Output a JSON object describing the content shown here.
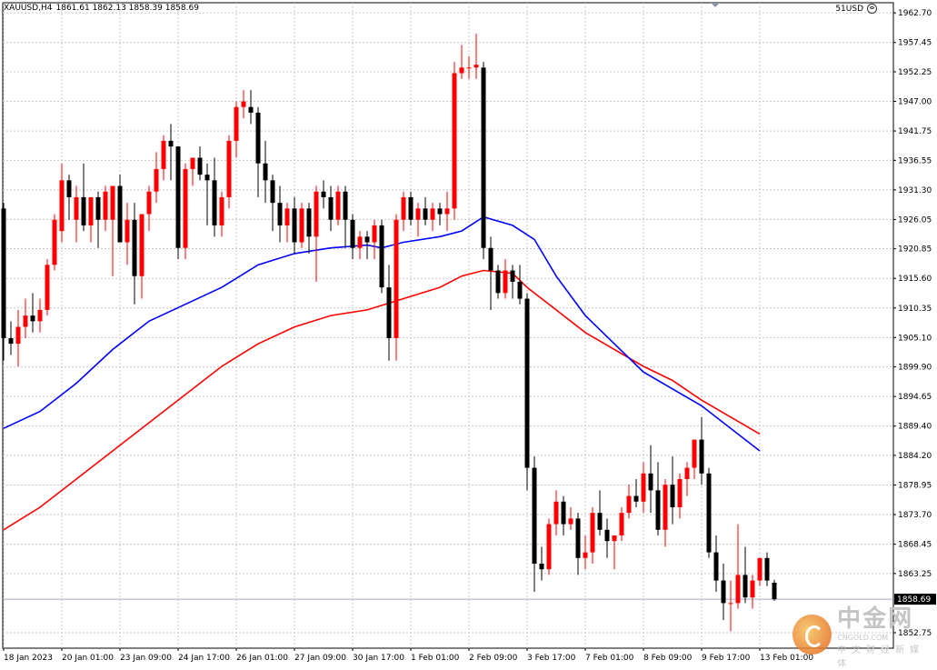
{
  "header": {
    "symbol": "XAUUSD,H4",
    "ohlc": "1861.61 1862.13 1858.39 1858.69"
  },
  "account_label": "51USD",
  "current_price_label": "1858.69",
  "watermark": {
    "main": "中金网",
    "sub": "CNGOLD.COM",
    "tagline": "中文财经新媒体"
  },
  "colors": {
    "bull": "#ff0000",
    "bear": "#000000",
    "ma_fast": "#0000ff",
    "ma_slow": "#ff0000",
    "grid": "#c8c8c8",
    "bid_line": "#a9a9c6"
  },
  "chart_data": {
    "type": "candlestick",
    "symbol": "XAUUSD",
    "timeframe": "H4",
    "ylim": [
      1850.0,
      1964.5
    ],
    "y_ticks": [
      1962.7,
      1957.45,
      1952.25,
      1947.0,
      1941.75,
      1936.55,
      1931.3,
      1926.05,
      1920.85,
      1915.6,
      1910.35,
      1905.1,
      1899.9,
      1894.65,
      1889.4,
      1884.2,
      1878.95,
      1873.7,
      1868.45,
      1863.25,
      1852.75
    ],
    "x_tick_labels": [
      "18 Jan 2023",
      "20 Jan 01:00",
      "23 Jan 09:00",
      "24 Jan 17:00",
      "26 Jan 01:00",
      "27 Jan 09:00",
      "30 Jan 17:00",
      "1 Feb 01:00",
      "2 Feb 09:00",
      "3 Feb 17:00",
      "7 Feb 01:00",
      "8 Feb 09:00",
      "9 Feb 17:00",
      "13 Feb 01:00"
    ],
    "x_tick_bar_index": [
      0,
      8,
      16,
      24,
      32,
      40,
      48,
      56,
      64,
      72,
      80,
      88,
      96,
      104
    ],
    "grid": true,
    "candles": [
      {
        "o": 1928.0,
        "h": 1929.0,
        "l": 1901.0,
        "c": 1905.0
      },
      {
        "o": 1905.0,
        "h": 1908.0,
        "l": 1902.0,
        "c": 1904.0
      },
      {
        "o": 1904.0,
        "h": 1910.0,
        "l": 1900.0,
        "c": 1907.0
      },
      {
        "o": 1907.0,
        "h": 1912.0,
        "l": 1905.0,
        "c": 1909.0
      },
      {
        "o": 1909.0,
        "h": 1913.0,
        "l": 1906.0,
        "c": 1908.0
      },
      {
        "o": 1908.0,
        "h": 1912.0,
        "l": 1906.0,
        "c": 1910.0
      },
      {
        "o": 1910.0,
        "h": 1919.0,
        "l": 1909.0,
        "c": 1918.0
      },
      {
        "o": 1918.0,
        "h": 1927.0,
        "l": 1917.0,
        "c": 1926.0
      },
      {
        "o": 1924.0,
        "h": 1936.0,
        "l": 1922.0,
        "c": 1933.0
      },
      {
        "o": 1933.0,
        "h": 1934.0,
        "l": 1926.0,
        "c": 1930.0
      },
      {
        "o": 1926.0,
        "h": 1932.0,
        "l": 1922.0,
        "c": 1930.0
      },
      {
        "o": 1930.0,
        "h": 1936.0,
        "l": 1924.0,
        "c": 1925.0
      },
      {
        "o": 1925.0,
        "h": 1930.0,
        "l": 1922.0,
        "c": 1930.0
      },
      {
        "o": 1930.0,
        "h": 1931.0,
        "l": 1921.0,
        "c": 1926.0
      },
      {
        "o": 1926.0,
        "h": 1932.0,
        "l": 1924.0,
        "c": 1931.0
      },
      {
        "o": 1926.0,
        "h": 1931.0,
        "l": 1916.0,
        "c": 1932.0
      },
      {
        "o": 1932.0,
        "h": 1934.0,
        "l": 1922.0,
        "c": 1922.0
      },
      {
        "o": 1922.0,
        "h": 1929.0,
        "l": 1918.0,
        "c": 1926.0
      },
      {
        "o": 1926.0,
        "h": 1929.0,
        "l": 1911.0,
        "c": 1916.0
      },
      {
        "o": 1916.0,
        "h": 1927.0,
        "l": 1912.0,
        "c": 1927.0
      },
      {
        "o": 1927.0,
        "h": 1932.0,
        "l": 1924.0,
        "c": 1931.0
      },
      {
        "o": 1931.0,
        "h": 1938.0,
        "l": 1929.0,
        "c": 1935.0
      },
      {
        "o": 1935.0,
        "h": 1941.0,
        "l": 1933.0,
        "c": 1940.0
      },
      {
        "o": 1940.0,
        "h": 1943.0,
        "l": 1933.0,
        "c": 1939.0
      },
      {
        "o": 1939.0,
        "h": 1939.0,
        "l": 1919.0,
        "c": 1921.0
      },
      {
        "o": 1921.0,
        "h": 1936.0,
        "l": 1919.0,
        "c": 1935.0
      },
      {
        "o": 1935.0,
        "h": 1937.0,
        "l": 1932.0,
        "c": 1937.0
      },
      {
        "o": 1937.0,
        "h": 1939.0,
        "l": 1933.0,
        "c": 1934.0
      },
      {
        "o": 1934.0,
        "h": 1936.0,
        "l": 1925.0,
        "c": 1933.0
      },
      {
        "o": 1933.0,
        "h": 1937.0,
        "l": 1923.0,
        "c": 1925.0
      },
      {
        "o": 1925.0,
        "h": 1931.0,
        "l": 1923.0,
        "c": 1930.0
      },
      {
        "o": 1930.0,
        "h": 1941.0,
        "l": 1928.0,
        "c": 1940.0
      },
      {
        "o": 1940.0,
        "h": 1947.0,
        "l": 1937.0,
        "c": 1946.0
      },
      {
        "o": 1946.0,
        "h": 1949.0,
        "l": 1944.0,
        "c": 1947.0
      },
      {
        "o": 1946.0,
        "h": 1949.0,
        "l": 1943.0,
        "c": 1945.0
      },
      {
        "o": 1945.0,
        "h": 1946.0,
        "l": 1930.0,
        "c": 1936.0
      },
      {
        "o": 1936.0,
        "h": 1940.0,
        "l": 1929.0,
        "c": 1933.0
      },
      {
        "o": 1933.0,
        "h": 1934.0,
        "l": 1924.0,
        "c": 1929.0
      },
      {
        "o": 1929.0,
        "h": 1932.0,
        "l": 1922.0,
        "c": 1925.0
      },
      {
        "o": 1925.0,
        "h": 1929.0,
        "l": 1922.0,
        "c": 1928.0
      },
      {
        "o": 1928.0,
        "h": 1930.0,
        "l": 1920.0,
        "c": 1922.0
      },
      {
        "o": 1922.0,
        "h": 1929.0,
        "l": 1921.0,
        "c": 1928.0
      },
      {
        "o": 1928.0,
        "h": 1929.0,
        "l": 1920.0,
        "c": 1923.0
      },
      {
        "o": 1923.0,
        "h": 1932.0,
        "l": 1915.0,
        "c": 1931.0
      },
      {
        "o": 1931.0,
        "h": 1933.0,
        "l": 1928.0,
        "c": 1930.0
      },
      {
        "o": 1930.0,
        "h": 1932.0,
        "l": 1924.0,
        "c": 1926.0
      },
      {
        "o": 1926.0,
        "h": 1932.0,
        "l": 1925.0,
        "c": 1931.0
      },
      {
        "o": 1931.0,
        "h": 1932.0,
        "l": 1921.0,
        "c": 1926.0
      },
      {
        "o": 1926.0,
        "h": 1927.0,
        "l": 1919.0,
        "c": 1921.0
      },
      {
        "o": 1921.0,
        "h": 1924.0,
        "l": 1919.0,
        "c": 1923.0
      },
      {
        "o": 1923.0,
        "h": 1924.0,
        "l": 1919.0,
        "c": 1922.0
      },
      {
        "o": 1922.0,
        "h": 1926.0,
        "l": 1919.0,
        "c": 1925.0
      },
      {
        "o": 1925.0,
        "h": 1926.0,
        "l": 1913.0,
        "c": 1914.0
      },
      {
        "o": 1914.0,
        "h": 1918.0,
        "l": 1901.0,
        "c": 1905.0
      },
      {
        "o": 1905.0,
        "h": 1927.0,
        "l": 1901.0,
        "c": 1926.0
      },
      {
        "o": 1926.0,
        "h": 1931.0,
        "l": 1924.0,
        "c": 1930.0
      },
      {
        "o": 1930.0,
        "h": 1931.0,
        "l": 1925.0,
        "c": 1926.0
      },
      {
        "o": 1926.0,
        "h": 1929.0,
        "l": 1923.0,
        "c": 1928.0
      },
      {
        "o": 1928.0,
        "h": 1930.0,
        "l": 1925.0,
        "c": 1926.0
      },
      {
        "o": 1926.0,
        "h": 1929.0,
        "l": 1924.0,
        "c": 1928.0
      },
      {
        "o": 1928.0,
        "h": 1929.0,
        "l": 1925.0,
        "c": 1927.0
      },
      {
        "o": 1927.0,
        "h": 1931.0,
        "l": 1924.0,
        "c": 1928.0
      },
      {
        "o": 1928.0,
        "h": 1954.0,
        "l": 1926.0,
        "c": 1952.0
      },
      {
        "o": 1952.0,
        "h": 1957.0,
        "l": 1951.0,
        "c": 1953.0
      },
      {
        "o": 1953.0,
        "h": 1955.0,
        "l": 1951.0,
        "c": 1953.0
      },
      {
        "o": 1953.0,
        "h": 1959.0,
        "l": 1951.0,
        "c": 1953.5
      },
      {
        "o": 1953.0,
        "h": 1954.0,
        "l": 1919.0,
        "c": 1921.0
      },
      {
        "o": 1921.0,
        "h": 1923.0,
        "l": 1910.0,
        "c": 1917.0
      },
      {
        "o": 1917.0,
        "h": 1918.0,
        "l": 1912.0,
        "c": 1913.0
      },
      {
        "o": 1913.0,
        "h": 1919.0,
        "l": 1912.0,
        "c": 1917.0
      },
      {
        "o": 1917.0,
        "h": 1918.0,
        "l": 1912.0,
        "c": 1915.0
      },
      {
        "o": 1915.0,
        "h": 1918.0,
        "l": 1911.0,
        "c": 1912.0
      },
      {
        "o": 1912.0,
        "h": 1913.0,
        "l": 1878.0,
        "c": 1882.0
      },
      {
        "o": 1882.0,
        "h": 1884.0,
        "l": 1860.0,
        "c": 1865.0
      },
      {
        "o": 1865.0,
        "h": 1868.0,
        "l": 1862.0,
        "c": 1864.0
      },
      {
        "o": 1864.0,
        "h": 1873.0,
        "l": 1863.0,
        "c": 1872.0
      },
      {
        "o": 1872.0,
        "h": 1878.0,
        "l": 1870.0,
        "c": 1876.0
      },
      {
        "o": 1876.0,
        "h": 1877.0,
        "l": 1870.0,
        "c": 1872.0
      },
      {
        "o": 1872.0,
        "h": 1875.0,
        "l": 1871.0,
        "c": 1873.0
      },
      {
        "o": 1873.0,
        "h": 1874.0,
        "l": 1863.0,
        "c": 1866.0
      },
      {
        "o": 1866.0,
        "h": 1870.0,
        "l": 1864.0,
        "c": 1867.0
      },
      {
        "o": 1867.0,
        "h": 1875.0,
        "l": 1865.0,
        "c": 1874.0
      },
      {
        "o": 1874.0,
        "h": 1878.0,
        "l": 1870.0,
        "c": 1871.0
      },
      {
        "o": 1871.0,
        "h": 1873.0,
        "l": 1866.0,
        "c": 1869.0
      },
      {
        "o": 1869.0,
        "h": 1870.0,
        "l": 1864.0,
        "c": 1870.0
      },
      {
        "o": 1870.0,
        "h": 1875.0,
        "l": 1869.0,
        "c": 1874.0
      },
      {
        "o": 1874.0,
        "h": 1879.0,
        "l": 1873.0,
        "c": 1877.0
      },
      {
        "o": 1877.0,
        "h": 1880.0,
        "l": 1875.0,
        "c": 1876.0
      },
      {
        "o": 1876.0,
        "h": 1883.0,
        "l": 1874.0,
        "c": 1881.0
      },
      {
        "o": 1881.0,
        "h": 1886.0,
        "l": 1874.0,
        "c": 1878.0
      },
      {
        "o": 1878.0,
        "h": 1883.0,
        "l": 1870.0,
        "c": 1871.0
      },
      {
        "o": 1871.0,
        "h": 1880.0,
        "l": 1868.0,
        "c": 1879.0
      },
      {
        "o": 1879.0,
        "h": 1884.0,
        "l": 1872.0,
        "c": 1875.0
      },
      {
        "o": 1875.0,
        "h": 1881.0,
        "l": 1873.0,
        "c": 1880.0
      },
      {
        "o": 1880.0,
        "h": 1883.0,
        "l": 1877.0,
        "c": 1882.0
      },
      {
        "o": 1882.0,
        "h": 1887.0,
        "l": 1880.0,
        "c": 1887.0
      },
      {
        "o": 1887.0,
        "h": 1891.0,
        "l": 1879.0,
        "c": 1881.0
      },
      {
        "o": 1881.0,
        "h": 1882.0,
        "l": 1866.0,
        "c": 1867.0
      },
      {
        "o": 1867.0,
        "h": 1870.0,
        "l": 1860.0,
        "c": 1862.0
      },
      {
        "o": 1862.0,
        "h": 1865.0,
        "l": 1855.0,
        "c": 1858.0
      },
      {
        "o": 1858.0,
        "h": 1862.0,
        "l": 1853.0,
        "c": 1858.0
      },
      {
        "o": 1858.0,
        "h": 1872.0,
        "l": 1857.0,
        "c": 1863.0
      },
      {
        "o": 1863.0,
        "h": 1868.0,
        "l": 1858.0,
        "c": 1859.0
      },
      {
        "o": 1859.0,
        "h": 1863.0,
        "l": 1857.0,
        "c": 1862.0
      },
      {
        "o": 1862.0,
        "h": 1866.0,
        "l": 1861.0,
        "c": 1866.0
      },
      {
        "o": 1866.0,
        "h": 1867.0,
        "l": 1861.0,
        "c": 1862.0
      },
      {
        "o": 1861.61,
        "h": 1862.13,
        "l": 1858.39,
        "c": 1858.69
      }
    ],
    "ma_fast": [
      [
        0,
        1889.0
      ],
      [
        5,
        1892.0
      ],
      [
        10,
        1897.0
      ],
      [
        15,
        1903.0
      ],
      [
        20,
        1908.0
      ],
      [
        25,
        1911.0
      ],
      [
        30,
        1914.0
      ],
      [
        35,
        1918.0
      ],
      [
        40,
        1920.0
      ],
      [
        45,
        1921.0
      ],
      [
        50,
        1921.5
      ],
      [
        52,
        1921.0
      ],
      [
        55,
        1922.0
      ],
      [
        60,
        1923.0
      ],
      [
        63,
        1924.0
      ],
      [
        66,
        1926.5
      ],
      [
        70,
        1925.0
      ],
      [
        73,
        1922.5
      ],
      [
        76,
        1916.0
      ],
      [
        80,
        1909.0
      ],
      [
        84,
        1904.0
      ],
      [
        88,
        1899.0
      ],
      [
        92,
        1896.0
      ],
      [
        96,
        1893.0
      ],
      [
        100,
        1889.0
      ],
      [
        104,
        1885.0
      ]
    ],
    "ma_slow": [
      [
        0,
        1871.0
      ],
      [
        5,
        1875.0
      ],
      [
        10,
        1880.0
      ],
      [
        15,
        1885.0
      ],
      [
        20,
        1890.0
      ],
      [
        25,
        1895.0
      ],
      [
        30,
        1900.0
      ],
      [
        35,
        1904.0
      ],
      [
        40,
        1907.0
      ],
      [
        45,
        1909.0
      ],
      [
        50,
        1910.0
      ],
      [
        55,
        1912.0
      ],
      [
        60,
        1914.0
      ],
      [
        63,
        1916.0
      ],
      [
        66,
        1917.0
      ],
      [
        70,
        1916.5
      ],
      [
        72,
        1914.0
      ],
      [
        76,
        1910.0
      ],
      [
        80,
        1906.0
      ],
      [
        84,
        1903.0
      ],
      [
        88,
        1900.0
      ],
      [
        92,
        1897.5
      ],
      [
        96,
        1894.0
      ],
      [
        100,
        1891.0
      ],
      [
        104,
        1888.0
      ]
    ]
  }
}
